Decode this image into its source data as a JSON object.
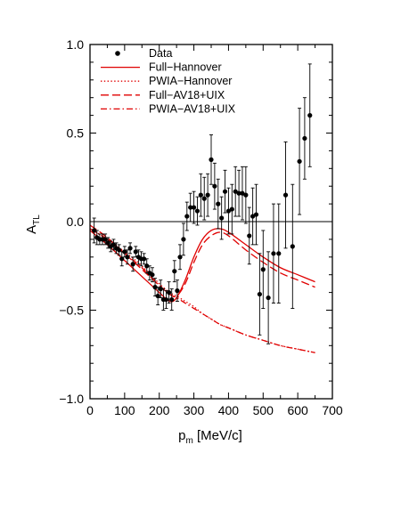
{
  "chart_data": {
    "type": "scatter",
    "xlabel": "p",
    "xlabel_sub": "m",
    "xlabel_units": " [MeV/c]",
    "ylabel": "A",
    "ylabel_sub": "TL",
    "xlim": [
      0,
      700
    ],
    "ylim": [
      -1.0,
      1.0
    ],
    "x_ticks": [
      0,
      100,
      200,
      300,
      400,
      500,
      600,
      700
    ],
    "x_tick_labels": [
      "0",
      "100",
      "200",
      "300",
      "400",
      "500",
      "600",
      "700"
    ],
    "y_ticks": [
      -1.0,
      -0.5,
      0.0,
      0.5,
      1.0
    ],
    "y_tick_labels": [
      "−1.0",
      "−0.5",
      "0.0",
      "0.5",
      "1.0"
    ],
    "zero_line": true,
    "legend_position": "top-left",
    "series": [
      {
        "name": "Data",
        "style": "points-with-errorbars",
        "color": "#000000",
        "points": [
          {
            "x": 12,
            "y": -0.05,
            "err": 0.07
          },
          {
            "x": 20,
            "y": -0.09,
            "err": 0.04
          },
          {
            "x": 28,
            "y": -0.1,
            "err": 0.03
          },
          {
            "x": 36,
            "y": -0.1,
            "err": 0.03
          },
          {
            "x": 44,
            "y": -0.1,
            "err": 0.03
          },
          {
            "x": 52,
            "y": -0.12,
            "err": 0.03
          },
          {
            "x": 60,
            "y": -0.14,
            "err": 0.03
          },
          {
            "x": 68,
            "y": -0.13,
            "err": 0.03
          },
          {
            "x": 76,
            "y": -0.15,
            "err": 0.03
          },
          {
            "x": 84,
            "y": -0.16,
            "err": 0.03
          },
          {
            "x": 92,
            "y": -0.21,
            "err": 0.04
          },
          {
            "x": 100,
            "y": -0.17,
            "err": 0.03
          },
          {
            "x": 108,
            "y": -0.2,
            "err": 0.04
          },
          {
            "x": 116,
            "y": -0.15,
            "err": 0.03
          },
          {
            "x": 124,
            "y": -0.24,
            "err": 0.04
          },
          {
            "x": 132,
            "y": -0.17,
            "err": 0.03
          },
          {
            "x": 140,
            "y": -0.2,
            "err": 0.04
          },
          {
            "x": 148,
            "y": -0.21,
            "err": 0.04
          },
          {
            "x": 156,
            "y": -0.21,
            "err": 0.03
          },
          {
            "x": 164,
            "y": -0.25,
            "err": 0.04
          },
          {
            "x": 172,
            "y": -0.29,
            "err": 0.04
          },
          {
            "x": 180,
            "y": -0.3,
            "err": 0.04
          },
          {
            "x": 188,
            "y": -0.37,
            "err": 0.05
          },
          {
            "x": 196,
            "y": -0.42,
            "err": 0.05
          },
          {
            "x": 204,
            "y": -0.38,
            "err": 0.05
          },
          {
            "x": 212,
            "y": -0.44,
            "err": 0.06
          },
          {
            "x": 220,
            "y": -0.44,
            "err": 0.05
          },
          {
            "x": 228,
            "y": -0.4,
            "err": 0.06
          },
          {
            "x": 236,
            "y": -0.44,
            "err": 0.06
          },
          {
            "x": 244,
            "y": -0.28,
            "err": 0.06
          },
          {
            "x": 252,
            "y": -0.39,
            "err": 0.06
          },
          {
            "x": 260,
            "y": -0.2,
            "err": 0.07
          },
          {
            "x": 270,
            "y": -0.1,
            "err": 0.09
          },
          {
            "x": 280,
            "y": 0.03,
            "err": 0.08
          },
          {
            "x": 290,
            "y": 0.08,
            "err": 0.08
          },
          {
            "x": 300,
            "y": 0.08,
            "err": 0.09
          },
          {
            "x": 310,
            "y": 0.06,
            "err": 0.08
          },
          {
            "x": 320,
            "y": 0.15,
            "err": 0.12
          },
          {
            "x": 330,
            "y": 0.13,
            "err": 0.12
          },
          {
            "x": 340,
            "y": 0.15,
            "err": 0.12
          },
          {
            "x": 350,
            "y": 0.35,
            "err": 0.14
          },
          {
            "x": 360,
            "y": 0.2,
            "err": 0.13
          },
          {
            "x": 370,
            "y": 0.1,
            "err": 0.14
          },
          {
            "x": 380,
            "y": 0.02,
            "err": 0.12
          },
          {
            "x": 390,
            "y": 0.17,
            "err": 0.12
          },
          {
            "x": 400,
            "y": 0.06,
            "err": 0.13
          },
          {
            "x": 410,
            "y": 0.07,
            "err": 0.14
          },
          {
            "x": 420,
            "y": 0.17,
            "err": 0.14
          },
          {
            "x": 430,
            "y": 0.16,
            "err": 0.13
          },
          {
            "x": 440,
            "y": 0.16,
            "err": 0.15
          },
          {
            "x": 450,
            "y": 0.15,
            "err": 0.16
          },
          {
            "x": 460,
            "y": -0.08,
            "err": 0.16
          },
          {
            "x": 470,
            "y": 0.03,
            "err": 0.16
          },
          {
            "x": 480,
            "y": 0.04,
            "err": 0.17
          },
          {
            "x": 490,
            "y": -0.41,
            "err": 0.23
          },
          {
            "x": 500,
            "y": -0.27,
            "err": 0.22
          },
          {
            "x": 515,
            "y": -0.43,
            "err": 0.26
          },
          {
            "x": 530,
            "y": -0.18,
            "err": 0.28
          },
          {
            "x": 545,
            "y": -0.18,
            "err": 0.28
          },
          {
            "x": 565,
            "y": 0.15,
            "err": 0.3
          },
          {
            "x": 585,
            "y": -0.14,
            "err": 0.35
          },
          {
            "x": 605,
            "y": 0.34,
            "err": 0.3
          },
          {
            "x": 620,
            "y": 0.47,
            "err": 0.23
          },
          {
            "x": 635,
            "y": 0.6,
            "err": 0.29
          }
        ]
      },
      {
        "name": "Full−Hannover",
        "style": "solid",
        "color": "#e00000",
        "x": [
          0,
          50,
          100,
          150,
          200,
          230,
          250,
          275,
          300,
          325,
          350,
          375,
          400,
          450,
          500,
          550,
          600,
          650
        ],
        "y": [
          -0.05,
          -0.13,
          -0.22,
          -0.31,
          -0.4,
          -0.45,
          -0.43,
          -0.33,
          -0.2,
          -0.1,
          -0.05,
          -0.04,
          -0.06,
          -0.13,
          -0.2,
          -0.26,
          -0.3,
          -0.34
        ]
      },
      {
        "name": "PWIA−Hannover",
        "style": "dotted",
        "color": "#e00000",
        "x": [
          0,
          50,
          100,
          150,
          200,
          230,
          250,
          275,
          300,
          325,
          350,
          375,
          400,
          450,
          500,
          550,
          600,
          650
        ],
        "y": [
          -0.04,
          -0.1,
          -0.17,
          -0.25,
          -0.35,
          -0.4,
          -0.42,
          -0.45,
          -0.48,
          -0.52,
          -0.55,
          -0.58,
          -0.6,
          -0.64,
          -0.67,
          -0.7,
          -0.72,
          -0.74
        ]
      },
      {
        "name": "Full−AV18+UIX",
        "style": "dashed",
        "color": "#e00000",
        "x": [
          0,
          50,
          100,
          150,
          200,
          230,
          250,
          275,
          300,
          325,
          350,
          375,
          400,
          450,
          500,
          550,
          600,
          650
        ],
        "y": [
          -0.02,
          -0.09,
          -0.18,
          -0.27,
          -0.36,
          -0.41,
          -0.42,
          -0.35,
          -0.23,
          -0.13,
          -0.08,
          -0.06,
          -0.08,
          -0.16,
          -0.23,
          -0.29,
          -0.33,
          -0.37
        ]
      },
      {
        "name": "PWIA−AV18+UIX",
        "style": "dash-dot",
        "color": "#e00000",
        "x": [
          0,
          50,
          100,
          150,
          200,
          230,
          250,
          275,
          300,
          325,
          350,
          375,
          400,
          450,
          500,
          550,
          600,
          650
        ],
        "y": [
          -0.04,
          -0.1,
          -0.18,
          -0.26,
          -0.36,
          -0.41,
          -0.43,
          -0.46,
          -0.49,
          -0.52,
          -0.55,
          -0.58,
          -0.6,
          -0.64,
          -0.67,
          -0.7,
          -0.72,
          -0.74
        ]
      }
    ]
  }
}
